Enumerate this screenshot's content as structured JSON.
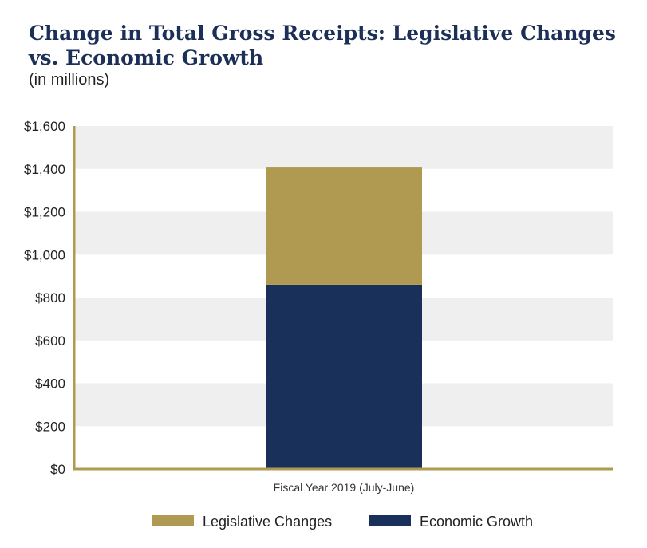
{
  "chart_data": {
    "type": "bar",
    "stacked": true,
    "title": "Change in Total Gross Receipts: Legislative Changes vs. Economic Growth",
    "subtitle": "(in millions)",
    "categories": [
      "Fiscal Year 2019 (July-June)"
    ],
    "series": [
      {
        "name": "Economic Growth",
        "values": [
          860
        ],
        "color": "#19305a"
      },
      {
        "name": "Legislative Changes",
        "values": [
          550
        ],
        "color": "#b09a52"
      }
    ],
    "legend_order": [
      "Legislative Changes",
      "Economic Growth"
    ],
    "ylim": [
      0,
      1600
    ],
    "yticks": [
      0,
      200,
      400,
      600,
      800,
      1000,
      1200,
      1400,
      1600
    ],
    "ytick_labels": [
      "$0",
      "$200",
      "$400",
      "$600",
      "$800",
      "$1,000",
      "$1,200",
      "$1,400",
      "$1,600"
    ],
    "grid": "alternating horizontal bands",
    "legend_position": "bottom",
    "colors": {
      "axis": "#b09a52",
      "band": "#efefef",
      "title": "#1b2f57"
    }
  }
}
